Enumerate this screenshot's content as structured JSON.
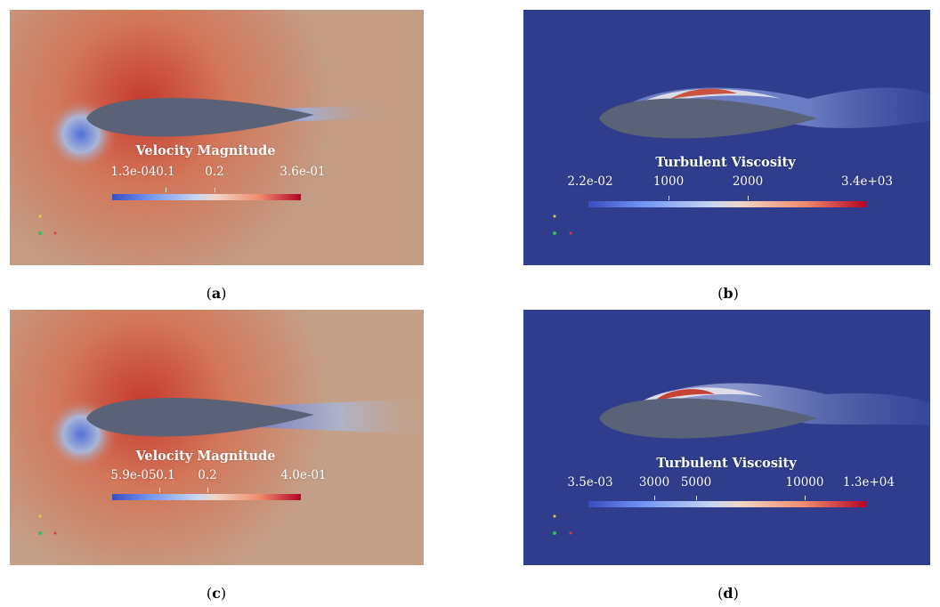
{
  "panels": {
    "a": {
      "caption_open": "(",
      "caption_letter": "a",
      "caption_close": ")",
      "colorbar_title": "Velocity Magnitude",
      "colorbar_ticks": [
        "1.3e-04",
        "0.1",
        "0.2",
        "3.6e-01"
      ]
    },
    "b": {
      "caption_open": "(",
      "caption_letter": "b",
      "caption_close": ")",
      "colorbar_title": "Turbulent Viscosity",
      "colorbar_ticks": [
        "2.2e-02",
        "1000",
        "2000",
        "3.4e+03"
      ]
    },
    "c": {
      "caption_open": "(",
      "caption_letter": "c",
      "caption_close": ")",
      "colorbar_title": "Velocity Magnitude",
      "colorbar_ticks": [
        "5.9e-05",
        "0.1",
        "0.2",
        "4.0e-01"
      ]
    },
    "d": {
      "caption_open": "(",
      "caption_letter": "d",
      "caption_close": ")",
      "colorbar_title": "Turbulent Viscosity",
      "colorbar_ticks": [
        "3.5e-03",
        "3000",
        "5000",
        "10000",
        "1.3e+04"
      ]
    }
  },
  "colors": {
    "velocity_background": "#c09a83",
    "viscosity_background": "#2f3d8c",
    "airfoil": "#56607a",
    "high": "#b40426",
    "low": "#3b4cc0"
  }
}
